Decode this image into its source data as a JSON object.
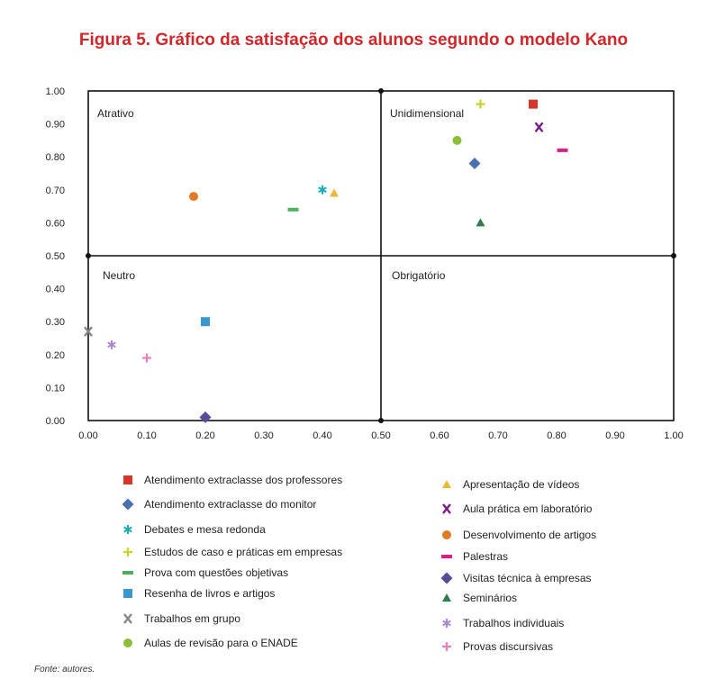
{
  "chart_data": {
    "type": "scatter",
    "title": "Figura 5. Gráfico da satisfação dos alunos segundo o modelo Kano",
    "xlabel": "",
    "ylabel": "",
    "xlim": [
      0,
      1
    ],
    "ylim": [
      0,
      1
    ],
    "x_ticks": [
      "0.00",
      "0.10",
      "0.20",
      "0.30",
      "0.40",
      "0.50",
      "0.60",
      "0.70",
      "0.80",
      "0.90",
      "1.00"
    ],
    "y_ticks": [
      "0.00",
      "0.10",
      "0.20",
      "0.30",
      "0.40",
      "0.50",
      "0.60",
      "0.70",
      "0.80",
      "0.90",
      "1.00"
    ],
    "grid": false,
    "quadrants": {
      "top_left": "Atrativo",
      "top_right": "Unidimensional",
      "bottom_left": "Neutro",
      "bottom_right": "Obrigatório"
    },
    "series": [
      {
        "name": "Atendimento extraclasse dos professores",
        "marker": "square",
        "color": "#d7352c",
        "x": 0.76,
        "y": 0.96
      },
      {
        "name": "Atendimento extraclasse do monitor",
        "marker": "diamond",
        "color": "#4a6fb3",
        "x": 0.66,
        "y": 0.78
      },
      {
        "name": "Debates e mesa redonda",
        "marker": "asterisk",
        "color": "#1aaeb8",
        "x": 0.4,
        "y": 0.7
      },
      {
        "name": "Estudos de caso e práticas em empresas",
        "marker": "plus",
        "color": "#c9d32d",
        "x": 0.67,
        "y": 0.96
      },
      {
        "name": "Prova com questões objetivas",
        "marker": "dash",
        "color": "#4eb05a",
        "x": 0.35,
        "y": 0.64
      },
      {
        "name": "Resenha de livros e artigos",
        "marker": "square",
        "color": "#3a98cf",
        "x": 0.2,
        "y": 0.3
      },
      {
        "name": "Trabalhos em grupo",
        "marker": "x",
        "color": "#888888",
        "x": 0.0,
        "y": 0.27
      },
      {
        "name": "Aulas de revisão para o ENADE",
        "marker": "circle",
        "color": "#8bbf3a",
        "x": 0.63,
        "y": 0.85
      },
      {
        "name": "Apresentação de vídeos",
        "marker": "triangle",
        "color": "#e8b93a",
        "x": 0.42,
        "y": 0.69
      },
      {
        "name": "Aula prática em laboratório",
        "marker": "x",
        "color": "#7a1f86",
        "x": 0.77,
        "y": 0.89
      },
      {
        "name": "Desenvolvimento de artigos",
        "marker": "circle",
        "color": "#e07a24",
        "x": 0.18,
        "y": 0.68
      },
      {
        "name": "Palestras",
        "marker": "dash",
        "color": "#d91f85",
        "x": 0.81,
        "y": 0.82
      },
      {
        "name": "Visitas técnica à empresas",
        "marker": "diamond",
        "color": "#5a4a9a",
        "x": 0.2,
        "y": 0.01
      },
      {
        "name": "Seminários",
        "marker": "triangle",
        "color": "#2e7d4a",
        "x": 0.67,
        "y": 0.6
      },
      {
        "name": "Trabalhos individuais",
        "marker": "asterisk",
        "color": "#a888d2",
        "x": 0.04,
        "y": 0.23
      },
      {
        "name": "Provas discursivas",
        "marker": "plus",
        "color": "#e57fb6",
        "x": 0.1,
        "y": 0.19
      }
    ]
  },
  "source": "Fonte: autores."
}
